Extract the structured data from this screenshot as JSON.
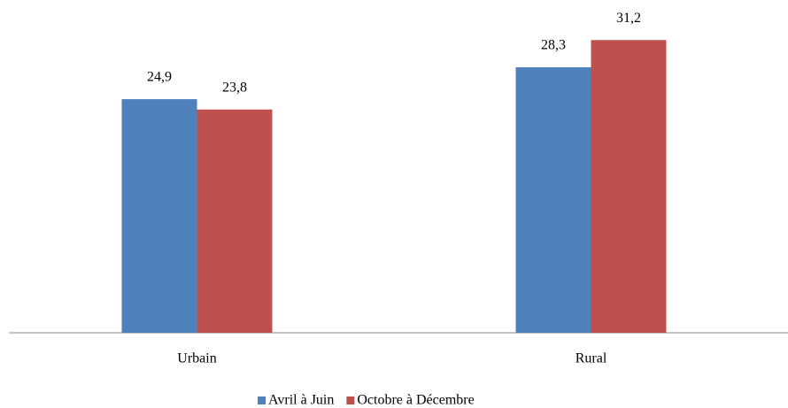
{
  "chart_data": {
    "type": "bar",
    "categories": [
      "Urbain",
      "Rural"
    ],
    "series": [
      {
        "name": "Avril à Juin",
        "color": "#4f81bd",
        "values": [
          24.9,
          28.3
        ],
        "value_labels": [
          "24,9",
          "28,3"
        ]
      },
      {
        "name": "Octobre à Décembre",
        "color": "#c0504d",
        "values": [
          23.8,
          31.2
        ],
        "value_labels": [
          "23,8",
          "31,2"
        ]
      }
    ],
    "ylim": [
      0,
      35
    ],
    "legend": "bottom"
  }
}
